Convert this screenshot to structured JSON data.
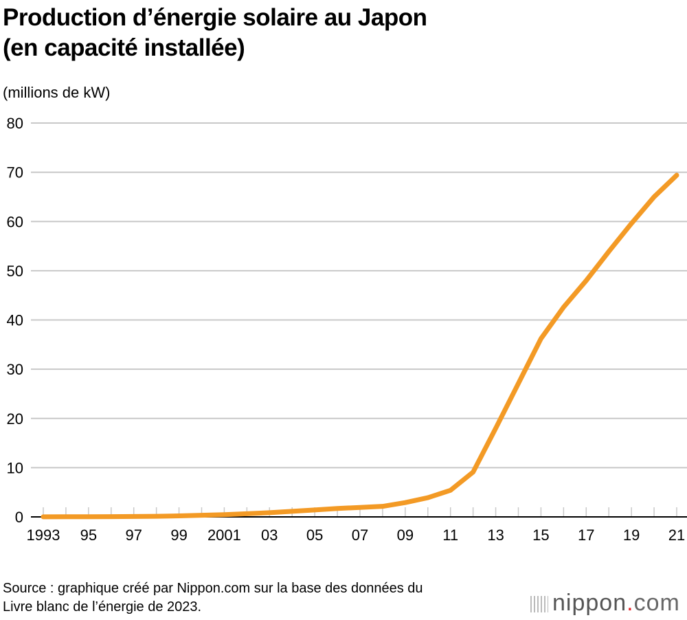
{
  "chart_data": {
    "type": "line",
    "title": "Production d’énergie solaire au Japon (en capacité installée)",
    "ylabel": "(millions de kW)",
    "xlabel": "",
    "ylim": [
      0,
      80
    ],
    "yticks": [
      0,
      10,
      20,
      30,
      40,
      50,
      60,
      70,
      80
    ],
    "xlim": [
      1993,
      2021
    ],
    "xtick_labels": [
      {
        "x": 1993,
        "label": "1993"
      },
      {
        "x": 1995,
        "label": "95"
      },
      {
        "x": 1997,
        "label": "97"
      },
      {
        "x": 1999,
        "label": "99"
      },
      {
        "x": 2001,
        "label": "2001"
      },
      {
        "x": 2003,
        "label": "03"
      },
      {
        "x": 2005,
        "label": "05"
      },
      {
        "x": 2007,
        "label": "07"
      },
      {
        "x": 2009,
        "label": "09"
      },
      {
        "x": 2011,
        "label": "11"
      },
      {
        "x": 2013,
        "label": "13"
      },
      {
        "x": 2015,
        "label": "15"
      },
      {
        "x": 2017,
        "label": "17"
      },
      {
        "x": 2019,
        "label": "19"
      },
      {
        "x": 2021,
        "label": "21"
      }
    ],
    "grid": true,
    "series": [
      {
        "color": "#f39a25",
        "x": [
          1993,
          1994,
          1995,
          1996,
          1997,
          1998,
          1999,
          2000,
          2001,
          2002,
          2003,
          2004,
          2005,
          2006,
          2007,
          2008,
          2009,
          2010,
          2011,
          2012,
          2013,
          2014,
          2015,
          2016,
          2017,
          2018,
          2019,
          2020,
          2021
        ],
        "y": [
          0.02,
          0.03,
          0.04,
          0.06,
          0.09,
          0.13,
          0.21,
          0.33,
          0.45,
          0.64,
          0.86,
          1.13,
          1.42,
          1.71,
          1.92,
          2.14,
          2.9,
          3.9,
          5.4,
          9.1,
          18.0,
          27.1,
          36.2,
          42.6,
          48.0,
          53.9,
          59.6,
          65.0,
          69.4
        ]
      }
    ],
    "source": "Source : graphique créé par Nippon.com sur la base des données du Livre blanc de l’énergie de 2023."
  },
  "source_line1": "Source : graphique créé par Nippon.com sur la base des données du",
  "source_line2": "Livre blanc de l’énergie de 2023.",
  "logo": {
    "name": "nippon",
    "dot": ".",
    "tld": "com"
  }
}
